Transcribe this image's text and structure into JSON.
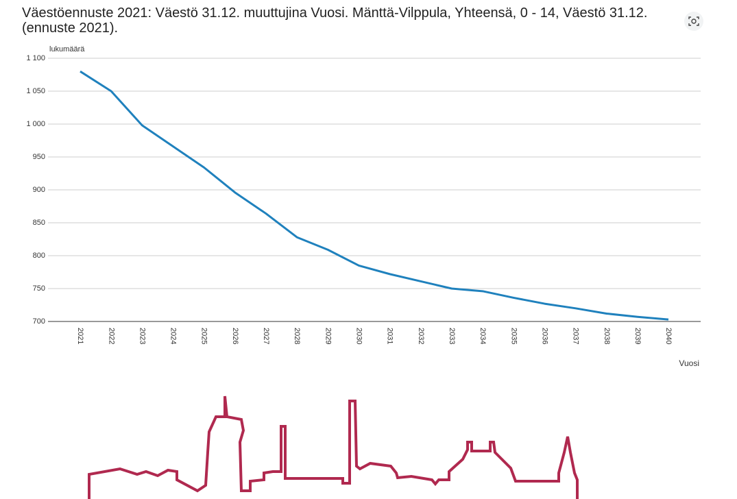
{
  "chart_data": {
    "type": "line",
    "title": "Väestöennuste 2021: Väestö 31.12. muuttujina Vuosi. Mänttä-Vilppula, Yhteensä, 0 - 14, Väestö 31.12. (ennuste 2021).",
    "y_label": "lukumäärä",
    "x_label": "Vuosi",
    "categories": [
      "2021",
      "2022",
      "2023",
      "2024",
      "2025",
      "2026",
      "2027",
      "2028",
      "2029",
      "2030",
      "2031",
      "2032",
      "2033",
      "2034",
      "2035",
      "2036",
      "2037",
      "2038",
      "2039",
      "2040"
    ],
    "values": [
      1080,
      1050,
      998,
      966,
      934,
      896,
      864,
      828,
      809,
      785,
      772,
      761,
      750,
      746,
      736,
      727,
      720,
      712,
      707,
      703
    ],
    "color": "#1f81bd",
    "ylim": [
      700,
      1100
    ],
    "yticks": [
      700,
      750,
      800,
      850,
      900,
      950,
      {
        "value": 1000,
        "label": "1 000"
      },
      {
        "value": 1050,
        "label": "1 050"
      },
      {
        "value": 1100,
        "label": "1 100"
      }
    ],
    "grid": true
  }
}
